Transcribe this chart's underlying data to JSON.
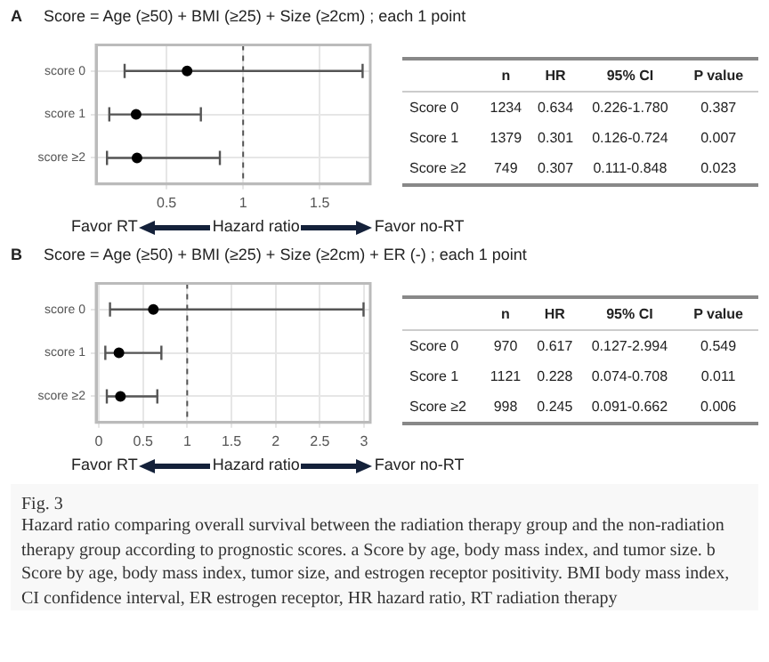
{
  "chart_data": [
    {
      "type": "scatter",
      "title": "Score = Age (≥50) + BMI (≥25) + Size (≥2cm) ; each 1 point",
      "annotations": [
        "A",
        "Favor RT",
        "Favor no-RT"
      ],
      "xlabel": "Hazard ratio",
      "orientation": "horizontal",
      "categories": [
        "score 0",
        "score 1",
        "score ≥2"
      ],
      "color": "#000000",
      "values": [
        0.634,
        0.301,
        0.307
      ],
      "errors": [
        [
          0.226,
          1.78
        ],
        [
          0.126,
          0.724
        ],
        [
          0.111,
          0.848
        ]
      ],
      "xlim": [
        0.04,
        1.83
      ],
      "xticks": [
        0.5,
        1,
        1.5
      ],
      "ref_lines": [
        {
          "axis": "x",
          "value": 1,
          "line_style": "dashed",
          "color": "#555555"
        }
      ],
      "grid": true,
      "marker": "circle"
    },
    {
      "type": "other",
      "categories": [
        "Score 0",
        "Score 1",
        "Score ≥2"
      ],
      "series": [
        {
          "name": "n",
          "values": [
            null,
            null,
            null
          ],
          "value_labels": [
            "1234",
            "1379",
            "749"
          ]
        },
        {
          "name": "HR",
          "values": [
            null,
            null,
            null
          ],
          "value_labels": [
            "0.634",
            "0.301",
            "0.307"
          ]
        },
        {
          "name": "95% CI",
          "values": [
            null,
            null,
            null
          ],
          "value_labels": [
            "0.226-1.780",
            "0.126-0.724",
            "0.111-0.848"
          ]
        },
        {
          "name": "P value",
          "values": [
            null,
            null,
            null
          ],
          "value_labels": [
            "0.387",
            "0.007",
            "0.023"
          ]
        }
      ]
    },
    {
      "type": "scatter",
      "title": "Score = Age (≥50) + BMI (≥25) + Size (≥2cm) + ER (-) ; each 1 point",
      "annotations": [
        "B",
        "Favor RT",
        "Favor no-RT"
      ],
      "xlabel": "Hazard ratio",
      "orientation": "horizontal",
      "categories": [
        "score 0",
        "score 1",
        "score ≥2"
      ],
      "color": "#000000",
      "values": [
        0.617,
        0.228,
        0.245
      ],
      "errors": [
        [
          0.127,
          2.994
        ],
        [
          0.074,
          0.708
        ],
        [
          0.091,
          0.662
        ]
      ],
      "xlim": [
        -0.03,
        3.07
      ],
      "xticks": [
        0,
        0.5,
        1,
        1.5,
        2,
        2.5,
        3
      ],
      "ref_lines": [
        {
          "axis": "x",
          "value": 1,
          "line_style": "dashed",
          "color": "#555555"
        }
      ],
      "grid": true,
      "marker": "circle"
    },
    {
      "type": "other",
      "categories": [
        "Score 0",
        "Score 1",
        "Score ≥2"
      ],
      "series": [
        {
          "name": "n",
          "values": [
            null,
            null,
            null
          ],
          "value_labels": [
            "970",
            "1121",
            "998"
          ]
        },
        {
          "name": "HR",
          "values": [
            null,
            null,
            null
          ],
          "value_labels": [
            "0.617",
            "0.228",
            "0.245"
          ]
        },
        {
          "name": "95% CI",
          "values": [
            null,
            null,
            null
          ],
          "value_labels": [
            "0.127-2.994",
            "0.074-0.708",
            "0.091-0.662"
          ]
        },
        {
          "name": "P value",
          "values": [
            null,
            null,
            null
          ],
          "value_labels": [
            "0.549",
            "0.011",
            "0.006"
          ]
        }
      ]
    },
    {
      "type": "other",
      "title": "Fig. 3",
      "annotations": [
        "Hazard ratio comparing overall survival between the radiation therapy group and the non-radiation therapy group according to prognostic scores. a Score by age, body mass index, and tumor size. b Score by age, body mass index, tumor size, and estrogen receptor positivity. BMI body mass index, CI confidence interval, ER estrogen receptor, HR hazard ratio, RT radiation therapy"
      ]
    }
  ]
}
